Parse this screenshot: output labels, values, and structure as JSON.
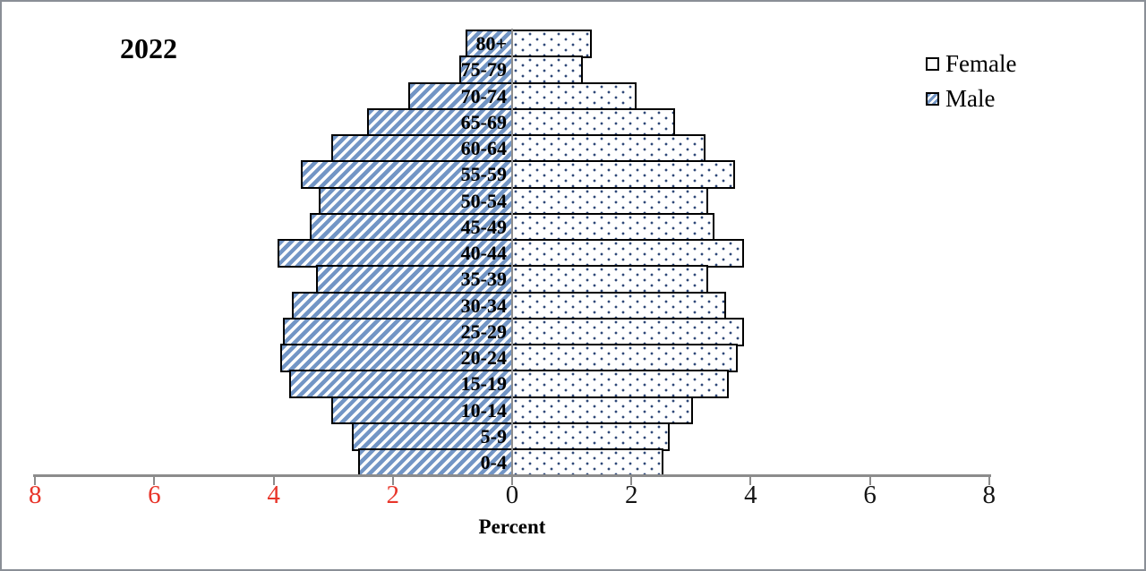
{
  "title": "2022",
  "legend": {
    "female_label": "Female",
    "male_label": "Male"
  },
  "colors": {
    "male_stripe": "#7295c5",
    "female_dot": "#2f4878",
    "bar_border": "#000000",
    "axis_gray": "#8c8c8c",
    "negative_tick_label": "#e8352a",
    "positive_tick_label": "#141414"
  },
  "chart_data": {
    "type": "bar",
    "subtype": "population-pyramid",
    "title": "2022",
    "xlabel": "Percent",
    "ylabel": "",
    "unit": "percent of total population",
    "grid": false,
    "legend_position": "top-right",
    "x_axis": {
      "min": -8,
      "max": 8,
      "tick_values": [
        -8,
        -6,
        -4,
        -2,
        0,
        2,
        4,
        6,
        8
      ],
      "tick_labels": [
        "8",
        "6",
        "4",
        "2",
        "0",
        "2",
        "4",
        "6",
        "8"
      ],
      "negative_side_label_color": "red"
    },
    "categories": [
      "80+",
      "75-79",
      "70-74",
      "65-69",
      "60-64",
      "55-59",
      "50-54",
      "45-49",
      "40-44",
      "35-39",
      "30-34",
      "25-29",
      "20-24",
      "15-19",
      "10-14",
      "5-9",
      "0-4"
    ],
    "series": [
      {
        "name": "Female",
        "side": "right",
        "pattern": "dots",
        "values": [
          1.3,
          1.15,
          2.05,
          2.7,
          3.2,
          3.7,
          3.25,
          3.35,
          3.85,
          3.25,
          3.55,
          3.85,
          3.75,
          3.6,
          3.0,
          2.6,
          2.5
        ]
      },
      {
        "name": "Male",
        "side": "left",
        "pattern": "diagonal-stripes",
        "values": [
          0.75,
          0.85,
          1.7,
          2.4,
          3.0,
          3.5,
          3.2,
          3.35,
          3.9,
          3.25,
          3.65,
          3.8,
          3.85,
          3.7,
          3.0,
          2.65,
          2.55
        ]
      }
    ]
  }
}
